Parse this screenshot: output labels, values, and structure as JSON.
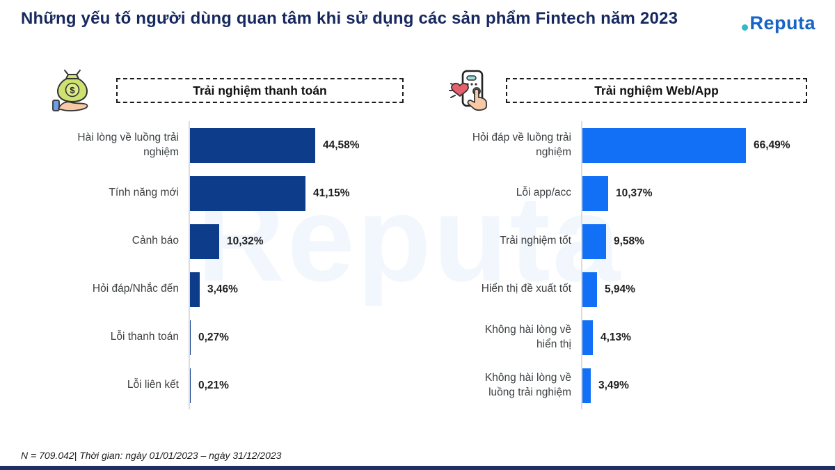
{
  "header": {
    "title": "Những yếu tố người dùng quan tâm khi sử dụng các sản phẩm Fintech năm 2023",
    "logo_text": "Reputa"
  },
  "watermark": {
    "text": "Reputa",
    "color": "#1170F5"
  },
  "footer": {
    "note": "N = 709.042| Thời gian: ngày 01/01/2023 – ngày 31/12/2023"
  },
  "chart_data": [
    {
      "type": "bar",
      "orientation": "horizontal",
      "title": "Trải nghiệm thanh toán",
      "icon": "money-bag-hand-icon",
      "bar_color": "#0D3C8B",
      "xlim": [
        0,
        50
      ],
      "grid": false,
      "legend": "none",
      "categories": [
        "Hài lòng về luồng trải nghiệm",
        "Tính năng mới",
        "Cảnh báo",
        "Hỏi đáp/Nhắc đến",
        "Lỗi thanh toán",
        "Lỗi liên kết"
      ],
      "values": [
        44.58,
        41.15,
        10.32,
        3.46,
        0.27,
        0.21
      ],
      "value_labels": [
        "44,58%",
        "41,15%",
        "10,32%",
        "3,46%",
        "0,27%",
        "0,21%"
      ]
    },
    {
      "type": "bar",
      "orientation": "horizontal",
      "title": "Trải nghiệm Web/App",
      "icon": "phone-tap-heart-icon",
      "bar_color": "#1170F5",
      "xlim": [
        0,
        75
      ],
      "grid": false,
      "legend": "none",
      "categories": [
        "Hỏi đáp về luồng trải nghiệm",
        "Lỗi app/acc",
        "Trải nghiệm tốt",
        "Hiển thị đề xuất tốt",
        "Không hài lòng về hiển thị",
        "Không hài lòng về luồng trải nghiệm"
      ],
      "values": [
        66.49,
        10.37,
        9.58,
        5.94,
        4.13,
        3.49
      ],
      "value_labels": [
        "66,49%",
        "10,37%",
        "9,58%",
        "5,94%",
        "4,13%",
        "3,49%"
      ]
    }
  ]
}
